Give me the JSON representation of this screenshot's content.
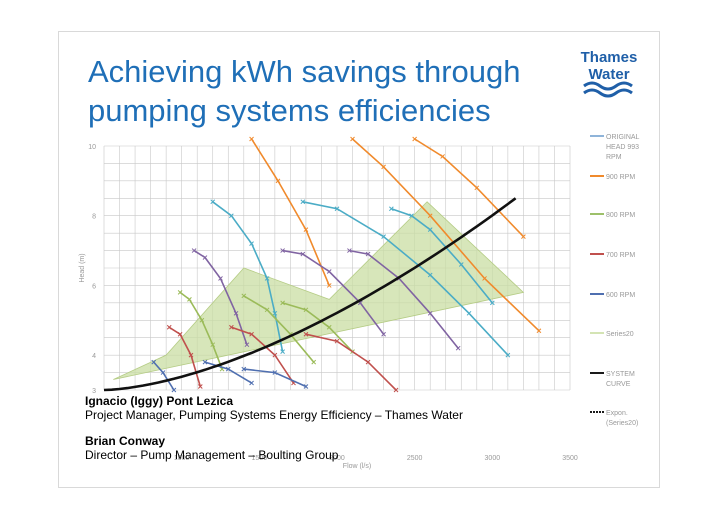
{
  "slide": {
    "title_line1": "Achieving kWh savings through",
    "title_line2": "pumping systems efficiencies",
    "logo": {
      "line1": "Thames",
      "line2": "Water",
      "color": "#1f5fa8"
    }
  },
  "credits": [
    {
      "name": "Ignacio (Iggy) Pont Lezica",
      "role": "Project Manager, Pumping Systems Energy Efficiency – Thames Water"
    },
    {
      "name": "Brian Conway",
      "role": "Director – Pump Management – Boulting Group"
    }
  ],
  "chart_data": {
    "type": "line",
    "title": "",
    "xlabel": "Flow (l/s)",
    "ylabel": "Head (m)",
    "xlim": [
      500,
      3500
    ],
    "ylim": [
      3,
      10
    ],
    "x_ticks": [
      "1000",
      "1500",
      "2000",
      "2500",
      "3000",
      "3500"
    ],
    "y_ticks": [
      "3",
      "4",
      "6",
      "8",
      "10"
    ],
    "legend": [
      {
        "name": "ORIGINAL HEAD 993 RPM",
        "color": "#8fb4d9"
      },
      {
        "name": "900 RPM",
        "color": "#f08a2c"
      },
      {
        "name": "800 RPM",
        "color": "#9dc06a"
      },
      {
        "name": "700 RPM",
        "color": "#c0504d"
      },
      {
        "name": "600 RPM",
        "color": "#4f6fb0"
      },
      {
        "name": "Series20",
        "color": "#d4e4b4"
      },
      {
        "name": "SYSTEM CURVE",
        "color": "#1a1a1a"
      },
      {
        "name": "Expon. (Series20)",
        "color": "#1a1a1a"
      }
    ],
    "colors": {
      "orange": "#f08a2c",
      "teal": "#4bacc6",
      "purple": "#8064a2",
      "green": "#9bbb59",
      "red": "#c0504d",
      "blue": "#4f6fb0",
      "system": "#111111",
      "band": "#c9dda3"
    }
  }
}
